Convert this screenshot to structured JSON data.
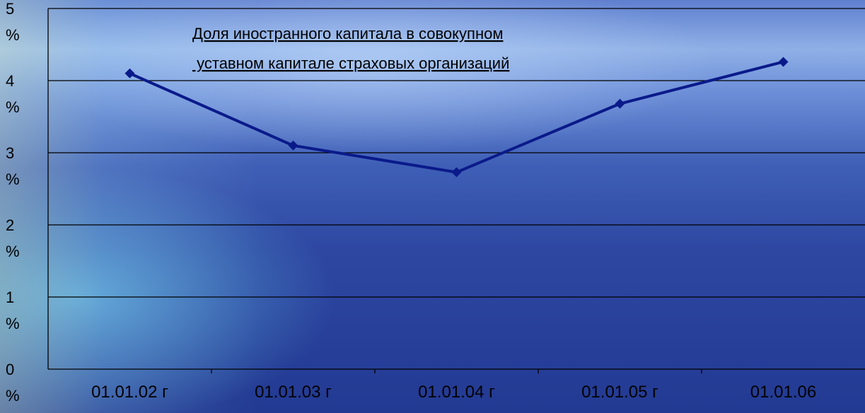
{
  "chart_data": {
    "type": "line",
    "title_lines": [
      "Доля иностранного капитала в совокупном",
      " уставном капитале страховых организаций"
    ],
    "categories": [
      "01.01.02 г",
      "01.01.03 г",
      "01.01.04 г",
      "01.01.05 г",
      "01.01.06"
    ],
    "series": [
      {
        "values": [
          4.1,
          3.1,
          2.73,
          3.68,
          4.26
        ]
      }
    ],
    "ylim": [
      0,
      5
    ],
    "y_ticks": [
      {
        "value": 0,
        "num": "0",
        "unit": "%"
      },
      {
        "value": 1,
        "num": "1",
        "unit": "%"
      },
      {
        "value": 2,
        "num": "2",
        "unit": "%"
      },
      {
        "value": 3,
        "num": "3",
        "unit": "%"
      },
      {
        "value": 4,
        "num": "4",
        "unit": "%"
      },
      {
        "value": 5,
        "num": "5",
        "unit": "%"
      }
    ],
    "grid": true,
    "line_color": "#0a1a8a",
    "grid_color": "#000000"
  }
}
